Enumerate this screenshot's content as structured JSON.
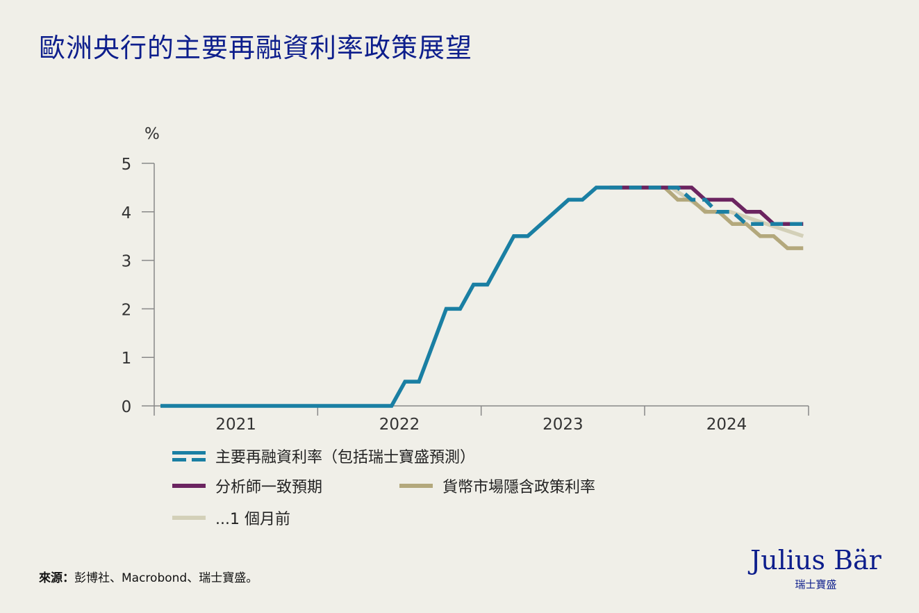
{
  "title": "歐洲央行的主要再融資利率政策展望",
  "chart_data": {
    "type": "line",
    "title": "歐洲央行的主要再融資利率政策展望",
    "ylabel": "%",
    "ylim": [
      0,
      5
    ],
    "xlim": [
      "2021-01-01",
      "2025-01-01"
    ],
    "y_ticks": [
      "0",
      "1",
      "2",
      "3",
      "4",
      "5"
    ],
    "x_ticks": [
      "2021",
      "2022",
      "2023",
      "2024"
    ],
    "grid": false,
    "legend_placement": "bottom",
    "series": [
      {
        "name": "主要再融資利率（包括瑞士寶盛預測）",
        "color": "#1a7fa3",
        "style": "solid",
        "points": [
          [
            "2021-01-15",
            0
          ],
          [
            "2022-06-15",
            0
          ],
          [
            "2022-07-15",
            0.5
          ],
          [
            "2022-08-15",
            0.5
          ],
          [
            "2022-10-15",
            2.0
          ],
          [
            "2022-11-15",
            2.0
          ],
          [
            "2022-12-15",
            2.5
          ],
          [
            "2023-01-15",
            2.5
          ],
          [
            "2023-03-15",
            3.5
          ],
          [
            "2023-04-15",
            3.5
          ],
          [
            "2023-07-15",
            4.25
          ],
          [
            "2023-08-15",
            4.25
          ],
          [
            "2023-09-15",
            4.5
          ],
          [
            "2023-10-15",
            4.5
          ]
        ]
      },
      {
        "name": "主要再融資利率（包括瑞士寶盛預測）",
        "color": "#1a7fa3",
        "style": "dashed",
        "points": [
          [
            "2023-10-15",
            4.5
          ],
          [
            "2024-03-15",
            4.5
          ],
          [
            "2024-04-15",
            4.25
          ],
          [
            "2024-05-15",
            4.25
          ],
          [
            "2024-06-10",
            4.0
          ],
          [
            "2024-07-15",
            4.0
          ],
          [
            "2024-08-15",
            3.75
          ],
          [
            "2024-12-20",
            3.75
          ]
        ]
      },
      {
        "name": "分析師一致預期",
        "color": "#6b2460",
        "style": "solid",
        "points": [
          [
            "2023-10-15",
            4.5
          ],
          [
            "2024-04-15",
            4.5
          ],
          [
            "2024-05-15",
            4.25
          ],
          [
            "2024-07-15",
            4.25
          ],
          [
            "2024-08-15",
            4.0
          ],
          [
            "2024-09-15",
            4.0
          ],
          [
            "2024-10-15",
            3.75
          ],
          [
            "2024-12-20",
            3.75
          ]
        ]
      },
      {
        "name": "貨幣市場隱含政策利率",
        "color": "#b3a87c",
        "style": "solid",
        "points": [
          [
            "2023-10-15",
            4.5
          ],
          [
            "2024-02-15",
            4.5
          ],
          [
            "2024-03-15",
            4.25
          ],
          [
            "2024-04-15",
            4.25
          ],
          [
            "2024-05-15",
            4.0
          ],
          [
            "2024-06-15",
            4.0
          ],
          [
            "2024-07-15",
            3.75
          ],
          [
            "2024-08-15",
            3.75
          ],
          [
            "2024-09-15",
            3.5
          ],
          [
            "2024-10-15",
            3.5
          ],
          [
            "2024-11-15",
            3.25
          ],
          [
            "2024-12-20",
            3.25
          ]
        ]
      },
      {
        "name": "...1 個月前",
        "color": "#d3d0b8",
        "style": "solid",
        "points": [
          [
            "2023-10-15",
            4.5
          ],
          [
            "2024-03-01",
            4.5
          ],
          [
            "2024-05-20",
            4.0
          ],
          [
            "2024-07-10",
            4.0
          ],
          [
            "2024-12-20",
            3.5
          ]
        ]
      }
    ]
  },
  "legend": [
    {
      "label": "主要再融資利率（包括瑞士寶盛預測）",
      "color": "#1a7fa3"
    },
    {
      "label": "分析師一致預期",
      "color": "#6b2460"
    },
    {
      "label": "貨幣市場隱含政策利率",
      "color": "#b3a87c"
    },
    {
      "label": "...1 個月前",
      "color": "#d3d0b8"
    }
  ],
  "source": {
    "label": "來源：",
    "text": "彭博社、Macrobond、瑞士寶盛。"
  },
  "logo": {
    "name": "Julius Bär",
    "sub": "瑞士寶盛"
  },
  "colors": {
    "title": "#0d1e8c",
    "background": "#f0efe8"
  }
}
